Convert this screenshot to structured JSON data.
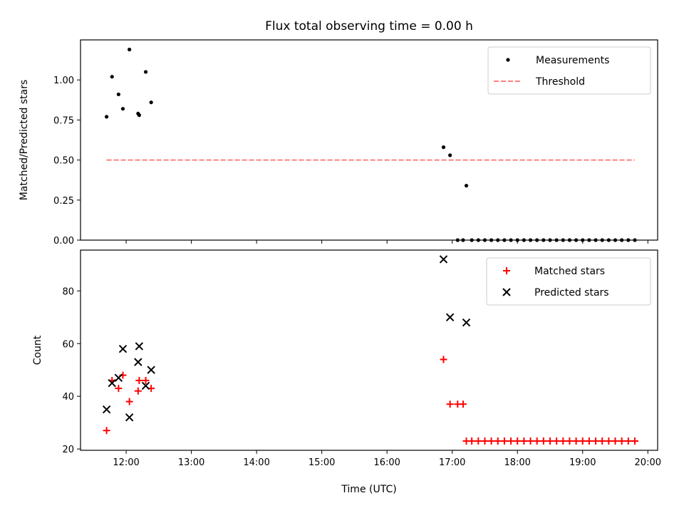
{
  "figure": {
    "title": "Flux total observing time = 0.00 h",
    "xlabel": "Time (UTC)"
  },
  "chart_data": [
    {
      "type": "scatter",
      "ylabel": "Matched/Predicted stars",
      "xlim": [
        "11:18",
        "20:09"
      ],
      "ylim": [
        0,
        1.25
      ],
      "x_ticks": [
        "12:00",
        "13:00",
        "14:00",
        "15:00",
        "16:00",
        "17:00",
        "18:00",
        "19:00",
        "20:00"
      ],
      "y_ticks": [
        0.0,
        0.25,
        0.5,
        0.75,
        1.0
      ],
      "y_tick_labels": [
        "0.00",
        "0.25",
        "0.50",
        "0.75",
        "1.00"
      ],
      "show_x_tick_labels": false,
      "legend": "top-right",
      "grid": false,
      "series": [
        {
          "name": "Measurements",
          "marker": "dot",
          "color": "#000000",
          "points": [
            [
              "11:42",
              0.77
            ],
            [
              "11:47",
              1.02
            ],
            [
              "11:53",
              0.91
            ],
            [
              "11:57",
              0.82
            ],
            [
              "12:03",
              1.19
            ],
            [
              "12:11",
              0.79
            ],
            [
              "12:12",
              0.78
            ],
            [
              "12:18",
              1.05
            ],
            [
              "12:23",
              0.86
            ],
            [
              "16:52",
              0.58
            ],
            [
              "16:58",
              0.53
            ],
            [
              "17:05",
              0.0
            ],
            [
              "17:10",
              0.0
            ],
            [
              "17:13",
              0.34
            ],
            [
              "17:18",
              0.0
            ],
            [
              "17:24",
              0.0
            ],
            [
              "17:30",
              0.0
            ],
            [
              "17:36",
              0.0
            ],
            [
              "17:42",
              0.0
            ],
            [
              "17:48",
              0.0
            ],
            [
              "17:54",
              0.0
            ],
            [
              "18:00",
              0.0
            ],
            [
              "18:06",
              0.0
            ],
            [
              "18:12",
              0.0
            ],
            [
              "18:18",
              0.0
            ],
            [
              "18:24",
              0.0
            ],
            [
              "18:30",
              0.0
            ],
            [
              "18:36",
              0.0
            ],
            [
              "18:42",
              0.0
            ],
            [
              "18:48",
              0.0
            ],
            [
              "18:54",
              0.0
            ],
            [
              "19:00",
              0.0
            ],
            [
              "19:06",
              0.0
            ],
            [
              "19:12",
              0.0
            ],
            [
              "19:18",
              0.0
            ],
            [
              "19:24",
              0.0
            ],
            [
              "19:30",
              0.0
            ],
            [
              "19:36",
              0.0
            ],
            [
              "19:42",
              0.0
            ],
            [
              "19:48",
              0.0
            ]
          ]
        },
        {
          "name": "Threshold",
          "type": "line",
          "style": "dashed",
          "color": "#ff7f7f",
          "points": [
            [
              "11:42",
              0.5
            ],
            [
              "19:48",
              0.5
            ]
          ]
        }
      ]
    },
    {
      "type": "scatter",
      "ylabel": "Count",
      "xlim": [
        "11:18",
        "20:09"
      ],
      "ylim": [
        19.5,
        95.5
      ],
      "x_ticks": [
        "12:00",
        "13:00",
        "14:00",
        "15:00",
        "16:00",
        "17:00",
        "18:00",
        "19:00",
        "20:00"
      ],
      "x_tick_labels": [
        "12:00",
        "13:00",
        "14:00",
        "15:00",
        "16:00",
        "17:00",
        "18:00",
        "19:00",
        "20:00"
      ],
      "y_ticks": [
        20,
        40,
        60,
        80
      ],
      "y_tick_labels": [
        "20",
        "40",
        "60",
        "80"
      ],
      "legend": "top-right",
      "grid": false,
      "series": [
        {
          "name": "Matched stars",
          "marker": "plus",
          "color": "#ff0000",
          "points": [
            [
              "11:42",
              27
            ],
            [
              "11:47",
              46
            ],
            [
              "11:53",
              43
            ],
            [
              "11:57",
              48
            ],
            [
              "12:03",
              38
            ],
            [
              "12:11",
              42
            ],
            [
              "12:12",
              46
            ],
            [
              "12:18",
              46
            ],
            [
              "12:23",
              43
            ],
            [
              "16:52",
              54
            ],
            [
              "16:58",
              37
            ],
            [
              "17:05",
              37
            ],
            [
              "17:10",
              37
            ],
            [
              "17:13",
              23
            ],
            [
              "17:18",
              23
            ],
            [
              "17:24",
              23
            ],
            [
              "17:30",
              23
            ],
            [
              "17:36",
              23
            ],
            [
              "17:42",
              23
            ],
            [
              "17:48",
              23
            ],
            [
              "17:54",
              23
            ],
            [
              "18:00",
              23
            ],
            [
              "18:06",
              23
            ],
            [
              "18:12",
              23
            ],
            [
              "18:18",
              23
            ],
            [
              "18:24",
              23
            ],
            [
              "18:30",
              23
            ],
            [
              "18:36",
              23
            ],
            [
              "18:42",
              23
            ],
            [
              "18:48",
              23
            ],
            [
              "18:54",
              23
            ],
            [
              "19:00",
              23
            ],
            [
              "19:06",
              23
            ],
            [
              "19:12",
              23
            ],
            [
              "19:18",
              23
            ],
            [
              "19:24",
              23
            ],
            [
              "19:30",
              23
            ],
            [
              "19:36",
              23
            ],
            [
              "19:42",
              23
            ],
            [
              "19:48",
              23
            ]
          ]
        },
        {
          "name": "Predicted stars",
          "marker": "x",
          "color": "#000000",
          "points": [
            [
              "11:42",
              35
            ],
            [
              "11:47",
              45
            ],
            [
              "11:53",
              47
            ],
            [
              "11:57",
              58
            ],
            [
              "12:03",
              32
            ],
            [
              "12:11",
              53
            ],
            [
              "12:12",
              59
            ],
            [
              "12:18",
              44
            ],
            [
              "12:23",
              50
            ],
            [
              "16:52",
              92
            ],
            [
              "16:58",
              70
            ],
            [
              "17:13",
              68
            ]
          ]
        }
      ]
    }
  ]
}
